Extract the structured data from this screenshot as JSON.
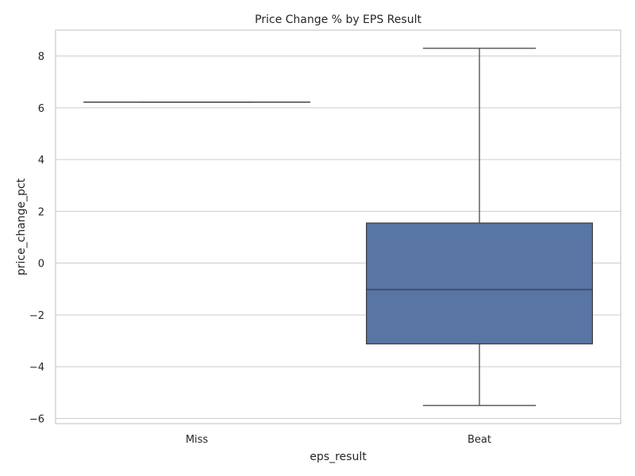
{
  "chart_data": {
    "type": "box",
    "title": "Price Change % by EPS Result",
    "xlabel": "eps_result",
    "ylabel": "price_change_pct",
    "categories": [
      "Miss",
      "Beat"
    ],
    "ylim": [
      -6.2,
      9.0
    ],
    "yticks": [
      -6,
      -4,
      -2,
      0,
      2,
      4,
      6,
      8
    ],
    "ytick_labels": [
      "−6",
      "−4",
      "−2",
      "0",
      "2",
      "4",
      "6",
      "8"
    ],
    "grid": true,
    "box_color": "#5875a4",
    "boxes": [
      {
        "category": "Miss",
        "min": 6.22,
        "q1": 6.22,
        "median": 6.22,
        "q3": 6.22,
        "max": 6.22
      },
      {
        "category": "Beat",
        "min": -5.5,
        "q1": -3.12,
        "median": -1.02,
        "q3": 1.55,
        "max": 8.3
      }
    ]
  }
}
